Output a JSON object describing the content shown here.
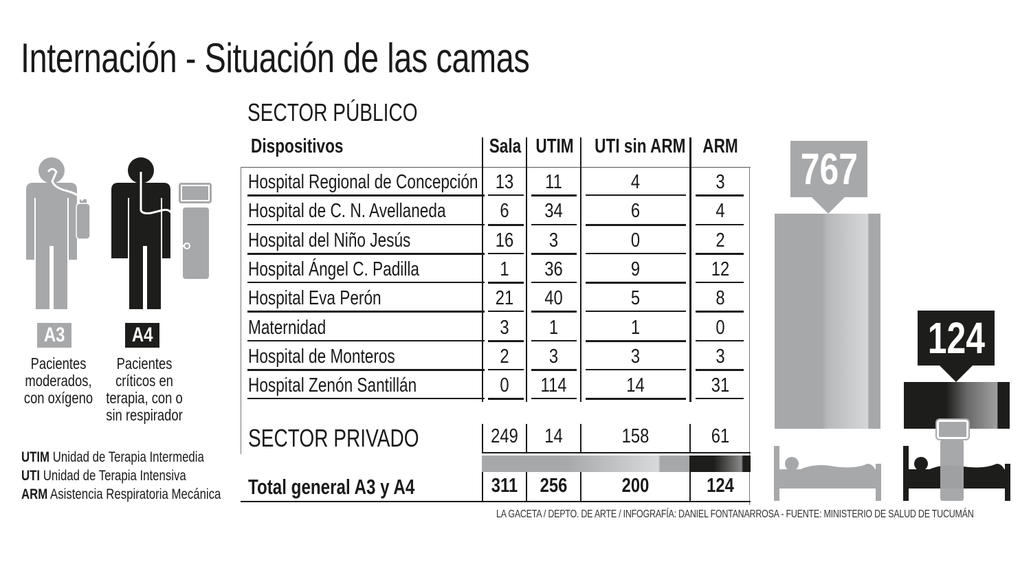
{
  "title": "Internación - Situación de las camas",
  "sector_publico_label": "SECTOR PÚBLICO",
  "table": {
    "headers": [
      "Dispositivos",
      "Sala",
      "UTIM",
      "UTI sin ARM",
      "ARM"
    ],
    "rows": [
      {
        "name": "Hospital Regional de Concepción",
        "sala": "13",
        "utim": "11",
        "uti_sin_arm": "4",
        "arm": "3"
      },
      {
        "name": "Hospital de C. N. Avellaneda",
        "sala": "6",
        "utim": "34",
        "uti_sin_arm": "6",
        "arm": "4"
      },
      {
        "name": "Hospital del Niño Jesús",
        "sala": "16",
        "utim": "3",
        "uti_sin_arm": "0",
        "arm": "2"
      },
      {
        "name": "Hospital Ángel C. Padilla",
        "sala": "1",
        "utim": "36",
        "uti_sin_arm": "9",
        "arm": "12"
      },
      {
        "name": "Hospital Eva Perón",
        "sala": "21",
        "utim": "40",
        "uti_sin_arm": "5",
        "arm": "8"
      },
      {
        "name": "Maternidad",
        "sala": "3",
        "utim": "1",
        "uti_sin_arm": "1",
        "arm": "0"
      },
      {
        "name": "Hospital de Monteros",
        "sala": "2",
        "utim": "3",
        "uti_sin_arm": "3",
        "arm": "3"
      },
      {
        "name": "Hospital Zenón Santillán",
        "sala": "0",
        "utim": "114",
        "uti_sin_arm": "14",
        "arm": "31"
      }
    ],
    "sector_privado": {
      "name": "SECTOR PRIVADO",
      "sala": "249",
      "utim": "14",
      "uti_sin_arm": "158",
      "arm": "61"
    },
    "total": {
      "name": "Total general A3 y A4",
      "sala": "311",
      "utim": "256",
      "uti_sin_arm": "200",
      "arm": "124"
    }
  },
  "legend": {
    "a3": {
      "code": "A3",
      "description_lines": [
        "Pacientes",
        "moderados,",
        "con oxígeno"
      ],
      "color": "#a7a8aa"
    },
    "a4": {
      "code": "A4",
      "description_lines": [
        "Pacientes",
        "críticos en",
        "terapia, con o",
        "sin respirador"
      ],
      "color": "#1d1d1b"
    }
  },
  "abbreviations": [
    {
      "abbr": "UTIM",
      "meaning": "Unidad de Terapia Intermedia"
    },
    {
      "abbr": "UTI",
      "meaning": "Unidad de Terapia Intensiva"
    },
    {
      "abbr": "ARM",
      "meaning": "Asistencia Respiratoria Mecánica"
    }
  ],
  "totals_graphic": {
    "a3_total": "767",
    "a4_total": "124"
  },
  "credit": "LA GACETA / DEPTO. DE ARTE / INFOGRAFÍA: DANIEL FONTANARROSA - FUENTE: MINISTERIO DE SALUD DE TUCUMÁN",
  "chart_data": {
    "type": "table",
    "title": "Internación - Situación de las camas",
    "columns": [
      "Dispositivos",
      "Sala",
      "UTIM",
      "UTI sin ARM",
      "ARM"
    ],
    "sections": [
      {
        "name": "SECTOR PÚBLICO",
        "rows": [
          [
            "Hospital Regional de Concepción",
            13,
            11,
            4,
            3
          ],
          [
            "Hospital de C. N. Avellaneda",
            6,
            34,
            6,
            4
          ],
          [
            "Hospital del Niño Jesús",
            16,
            3,
            0,
            2
          ],
          [
            "Hospital Ángel C. Padilla",
            1,
            36,
            9,
            12
          ],
          [
            "Hospital Eva Perón",
            21,
            40,
            5,
            8
          ],
          [
            "Maternidad",
            3,
            1,
            1,
            0
          ],
          [
            "Hospital de Monteros",
            2,
            3,
            3,
            3
          ],
          [
            "Hospital Zenón Santillán",
            0,
            114,
            14,
            31
          ]
        ]
      },
      {
        "name": "SECTOR PRIVADO",
        "rows": [
          [
            "SECTOR PRIVADO",
            249,
            14,
            158,
            61
          ]
        ]
      }
    ],
    "total": [
      "Total general A3 y A4",
      311,
      256,
      200,
      124
    ],
    "bar_comparison": {
      "type": "bar",
      "categories": [
        "A3 (Sala + UTIM + UTI sin ARM)",
        "A4 (ARM)"
      ],
      "values": [
        767,
        124
      ]
    },
    "legend": [
      {
        "label": "A3",
        "description": "Pacientes moderados, con oxígeno",
        "color": "#a7a8aa"
      },
      {
        "label": "A4",
        "description": "Pacientes críticos en terapia, con o sin respirador",
        "color": "#1d1d1b"
      }
    ]
  }
}
